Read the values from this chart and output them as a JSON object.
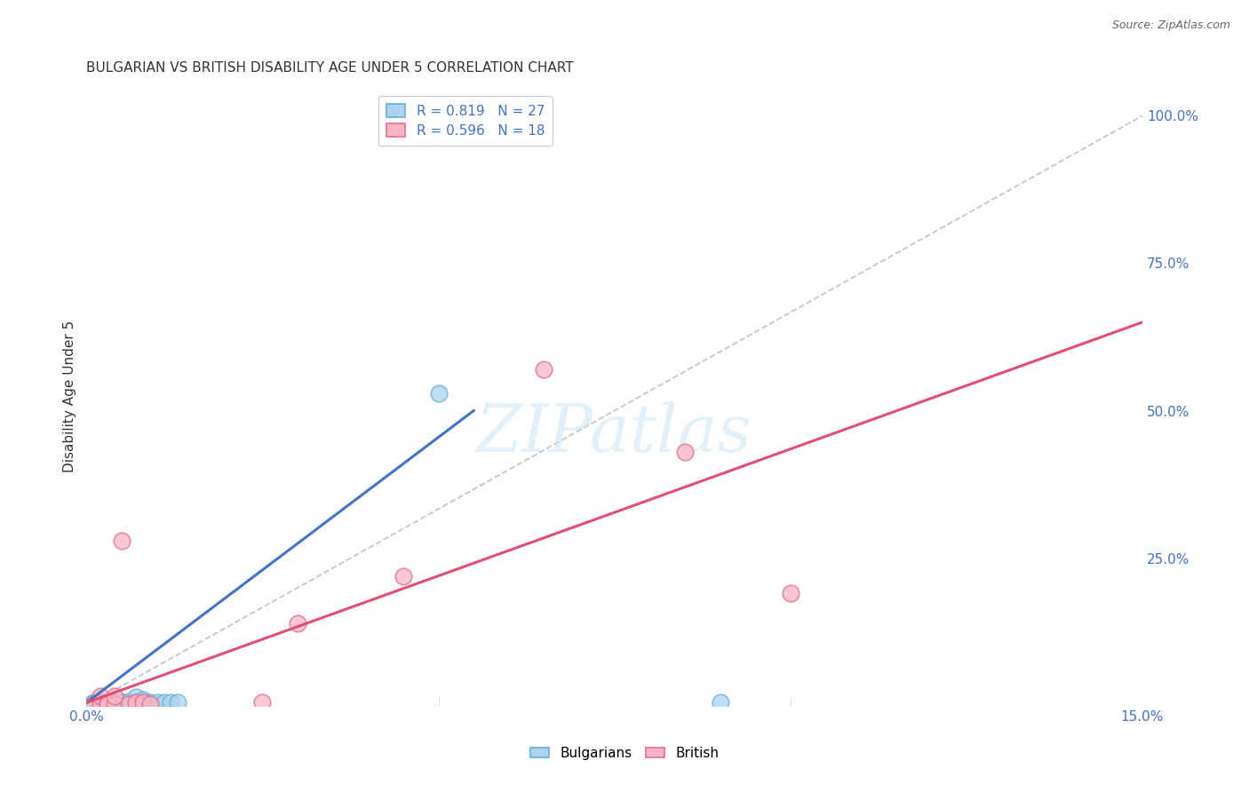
{
  "title": "BULGARIAN VS BRITISH DISABILITY AGE UNDER 5 CORRELATION CHART",
  "source": "Source: ZipAtlas.com",
  "ylabel": "Disability Age Under 5",
  "xlim": [
    0.0,
    0.15
  ],
  "ylim": [
    0.0,
    1.05
  ],
  "ytick_positions": [
    0.25,
    0.5,
    0.75,
    1.0
  ],
  "ytick_labels": [
    "25.0%",
    "50.0%",
    "75.0%",
    "100.0%"
  ],
  "xtick_positions": [
    0.0,
    0.05,
    0.1,
    0.15
  ],
  "xtick_labels": [
    "0.0%",
    "",
    "",
    "15.0%"
  ],
  "grid_color": "#d0d0d0",
  "background_color": "#ffffff",
  "legend_r1": "R = 0.819",
  "legend_n1": "N = 27",
  "legend_r2": "R = 0.596",
  "legend_n2": "N = 18",
  "watermark": "ZIPatlas",
  "diagonal_line_color": "#bbbbbb",
  "blue_line_color": "#4472c4",
  "pink_line_color": "#e05070",
  "bulg_face": "#aad4f0",
  "bulg_edge": "#6baed6",
  "brit_face": "#fbb4c4",
  "brit_edge": "#e07090",
  "blue_line_x": [
    0.0,
    0.055
  ],
  "blue_line_y": [
    0.005,
    0.5
  ],
  "pink_line_x": [
    0.0,
    0.15
  ],
  "pink_line_y": [
    0.005,
    0.65
  ],
  "bulgarian_scatter": [
    [
      0.001,
      0.005
    ],
    [
      0.001,
      0.004
    ],
    [
      0.001,
      0.003
    ],
    [
      0.002,
      0.005
    ],
    [
      0.002,
      0.004
    ],
    [
      0.002,
      0.003
    ],
    [
      0.003,
      0.006
    ],
    [
      0.003,
      0.005
    ],
    [
      0.003,
      0.004
    ],
    [
      0.004,
      0.006
    ],
    [
      0.004,
      0.005
    ],
    [
      0.004,
      0.004
    ],
    [
      0.005,
      0.005
    ],
    [
      0.005,
      0.006
    ],
    [
      0.006,
      0.005
    ],
    [
      0.006,
      0.007
    ],
    [
      0.007,
      0.006
    ],
    [
      0.007,
      0.015
    ],
    [
      0.008,
      0.007
    ],
    [
      0.008,
      0.01
    ],
    [
      0.009,
      0.005
    ],
    [
      0.01,
      0.005
    ],
    [
      0.011,
      0.006
    ],
    [
      0.012,
      0.005
    ],
    [
      0.013,
      0.005
    ],
    [
      0.05,
      0.53
    ],
    [
      0.09,
      0.005
    ]
  ],
  "british_scatter": [
    [
      0.001,
      0.003
    ],
    [
      0.002,
      0.004
    ],
    [
      0.002,
      0.016
    ],
    [
      0.003,
      0.005
    ],
    [
      0.003,
      0.003
    ],
    [
      0.004,
      0.003
    ],
    [
      0.004,
      0.016
    ],
    [
      0.005,
      0.28
    ],
    [
      0.006,
      0.003
    ],
    [
      0.007,
      0.005
    ],
    [
      0.008,
      0.005
    ],
    [
      0.009,
      0.003
    ],
    [
      0.025,
      0.005
    ],
    [
      0.03,
      0.14
    ],
    [
      0.045,
      0.22
    ],
    [
      0.065,
      0.57
    ],
    [
      0.085,
      0.43
    ],
    [
      0.1,
      0.19
    ]
  ],
  "title_fontsize": 11,
  "axis_tick_fontsize": 11,
  "ylabel_fontsize": 11,
  "tick_color": "#4472c4",
  "title_color": "#333333",
  "source_color": "#666666"
}
